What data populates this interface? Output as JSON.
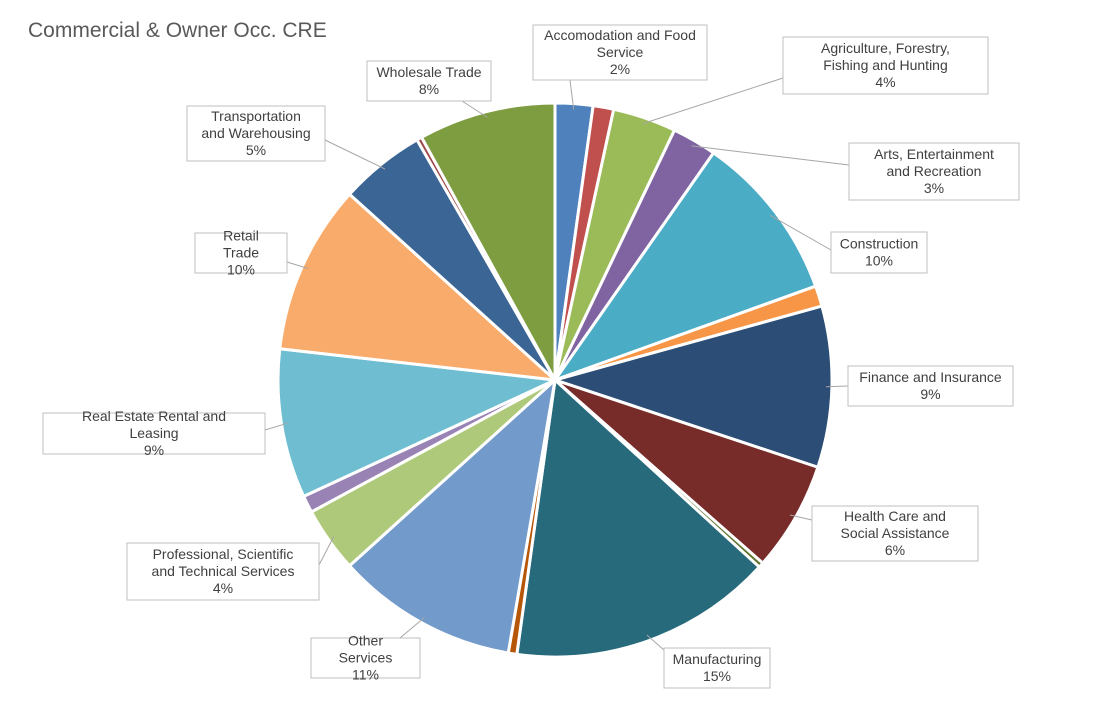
{
  "chart_data": {
    "type": "pie",
    "title": "Commercial & Owner Occ. CRE",
    "slices": [
      {
        "name": "Accomodation and Food Service",
        "value": 2.2,
        "label": "2%",
        "color": "#4f81bd",
        "show_label": true
      },
      {
        "name": "Unlabeled segment 1",
        "value": 1.2,
        "label": "",
        "color": "#c0504d",
        "show_label": false
      },
      {
        "name": "Agriculture, Forestry, Fishing and Hunting",
        "value": 3.7,
        "label": "4%",
        "color": "#9bbb59",
        "show_label": true
      },
      {
        "name": "Arts, Entertainment and Recreation",
        "value": 2.6,
        "label": "3%",
        "color": "#8064a2",
        "show_label": true
      },
      {
        "name": "Construction",
        "value": 9.8,
        "label": "10%",
        "color": "#4bacc6",
        "show_label": true
      },
      {
        "name": "Unlabeled segment 2",
        "value": 1.2,
        "label": "",
        "color": "#f79646",
        "show_label": false
      },
      {
        "name": "Finance and Insurance",
        "value": 9.4,
        "label": "9%",
        "color": "#2c4d75",
        "show_label": true
      },
      {
        "name": "Health Care and Social Assistance",
        "value": 6.4,
        "label": "6%",
        "color": "#772c2a",
        "show_label": true
      },
      {
        "name": "Unlabeled segment 3",
        "value": 0.3,
        "label": "",
        "color": "#5f7530",
        "show_label": false
      },
      {
        "name": "Manufacturing",
        "value": 15.4,
        "label": "15%",
        "color": "#276a7c",
        "show_label": true
      },
      {
        "name": "Unlabeled segment 4",
        "value": 0.5,
        "label": "",
        "color": "#b65708",
        "show_label": false
      },
      {
        "name": "Other Services",
        "value": 10.6,
        "label": "11%",
        "color": "#729aca",
        "show_label": true
      },
      {
        "name": "Professional, Scientific and Technical Services",
        "value": 3.8,
        "label": "4%",
        "color": "#afc97a",
        "show_label": true
      },
      {
        "name": "Unlabeled segment 5",
        "value": 1.0,
        "label": "",
        "color": "#9983b5",
        "show_label": false
      },
      {
        "name": "Real Estate Rental and Leasing",
        "value": 8.7,
        "label": "9%",
        "color": "#6fbdd1",
        "show_label": true
      },
      {
        "name": "Retail Trade",
        "value": 9.9,
        "label": "10%",
        "color": "#f9ab6b",
        "show_label": true
      },
      {
        "name": "Transportation and Warehousing",
        "value": 5.0,
        "label": "5%",
        "color": "#3a6595",
        "show_label": true
      },
      {
        "name": "Unlabeled segment 6",
        "value": 0.3,
        "label": "",
        "color": "#9c4a48",
        "show_label": false
      },
      {
        "name": "Wholesale Trade",
        "value": 8.0,
        "label": "8%",
        "color": "#7e9c40",
        "show_label": true
      }
    ],
    "legend": "none"
  }
}
